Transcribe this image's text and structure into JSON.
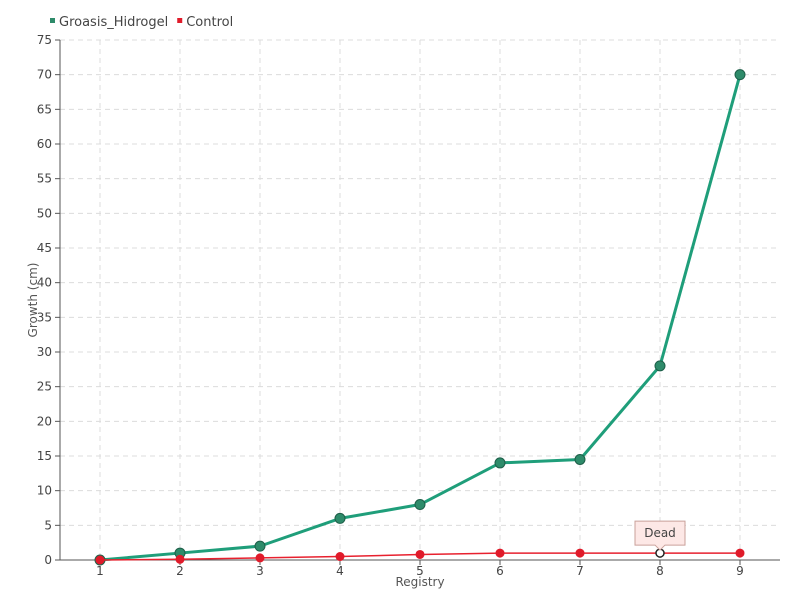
{
  "chart_data": {
    "type": "line",
    "title": "",
    "xlabel": "Registry",
    "ylabel": "Growth (cm)",
    "x": [
      1,
      2,
      3,
      4,
      5,
      6,
      7,
      8,
      9
    ],
    "xlim": [
      0.5,
      9.5
    ],
    "ylim": [
      0,
      75
    ],
    "yticks": [
      0,
      5,
      10,
      15,
      20,
      25,
      30,
      35,
      40,
      45,
      50,
      55,
      60,
      65,
      70,
      75
    ],
    "grid": true,
    "legend_position": "top-left",
    "series": [
      {
        "name": "Groasis_Hidrogel",
        "color": "#1f9e7a",
        "marker_color": "#2e8b6a",
        "values": [
          0,
          1,
          2,
          6,
          8,
          14,
          14.5,
          28,
          70
        ]
      },
      {
        "name": "Control",
        "color": "#e8212e",
        "marker_color": "#e01b2a",
        "values": [
          0,
          0.1,
          0.3,
          0.5,
          0.8,
          1,
          1,
          1,
          1
        ]
      }
    ],
    "annotations": [
      {
        "text": "Dead",
        "x": 8,
        "y": 1,
        "series": "Control"
      }
    ]
  }
}
